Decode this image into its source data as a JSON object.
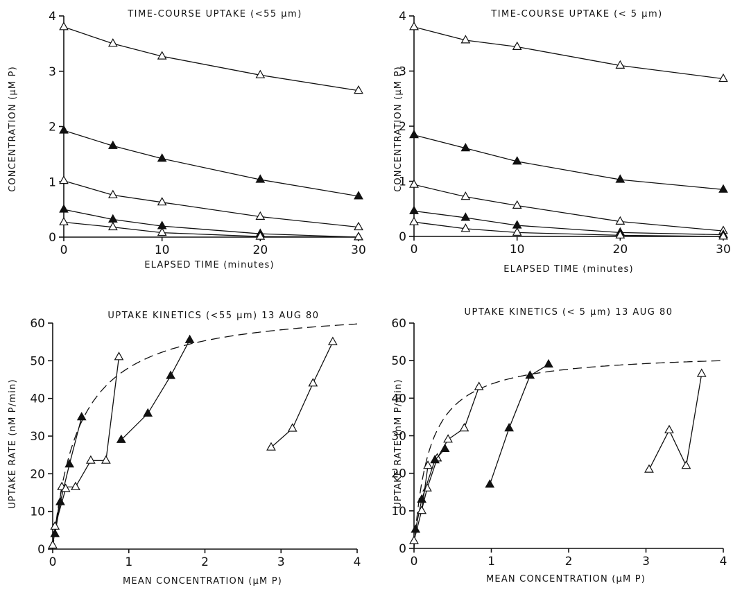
{
  "chart_data": [
    {
      "type": "line",
      "title": "TIME-COURSE UPTAKE (<55 µm)",
      "xlabel": "ELAPSED TIME (minutes)",
      "ylabel": "CONCENTRATION (µM P)",
      "xlim": [
        0,
        30
      ],
      "ylim": [
        0,
        4
      ],
      "xticks": [
        0,
        10,
        20,
        30
      ],
      "yticks": [
        0,
        1,
        2,
        3,
        4
      ],
      "grid": false,
      "series": [
        {
          "marker": "open-triangle",
          "x": [
            0,
            5,
            10,
            20,
            30
          ],
          "y": [
            3.8,
            3.5,
            3.27,
            2.93,
            2.65
          ]
        },
        {
          "marker": "filled-triangle",
          "x": [
            0,
            5,
            10,
            20,
            30
          ],
          "y": [
            1.93,
            1.65,
            1.42,
            1.04,
            0.74
          ]
        },
        {
          "marker": "open-triangle",
          "x": [
            0,
            5,
            10,
            20,
            30
          ],
          "y": [
            1.02,
            0.76,
            0.63,
            0.37,
            0.18
          ]
        },
        {
          "marker": "filled-triangle",
          "x": [
            0,
            5,
            10,
            20,
            30
          ],
          "y": [
            0.5,
            0.32,
            0.2,
            0.06,
            0.0
          ]
        },
        {
          "marker": "open-triangle",
          "x": [
            0,
            5,
            10,
            20,
            30
          ],
          "y": [
            0.27,
            0.18,
            0.08,
            0.01,
            0.0
          ]
        }
      ]
    },
    {
      "type": "line",
      "title": "TIME-COURSE UPTAKE (< 5 µm)",
      "xlabel": "ELAPSED TIME (minutes)",
      "ylabel": "CONCENTRATION (µM P)",
      "xlim": [
        0,
        30
      ],
      "ylim": [
        0,
        4
      ],
      "xticks": [
        0,
        10,
        20,
        30
      ],
      "yticks": [
        0,
        1,
        2,
        3,
        4
      ],
      "grid": false,
      "series": [
        {
          "marker": "open-triangle",
          "x": [
            0,
            5,
            10,
            20,
            30
          ],
          "y": [
            3.8,
            3.56,
            3.44,
            3.1,
            2.86
          ]
        },
        {
          "marker": "filled-triangle",
          "x": [
            0,
            5,
            10,
            20,
            30
          ],
          "y": [
            1.84,
            1.6,
            1.36,
            1.03,
            0.85
          ]
        },
        {
          "marker": "open-triangle",
          "x": [
            0,
            5,
            10,
            20,
            30
          ],
          "y": [
            0.94,
            0.72,
            0.56,
            0.27,
            0.1
          ]
        },
        {
          "marker": "filled-triangle",
          "x": [
            0,
            5,
            10,
            20,
            30
          ],
          "y": [
            0.46,
            0.34,
            0.2,
            0.07,
            0.03
          ]
        },
        {
          "marker": "open-triangle",
          "x": [
            0,
            5,
            10,
            20,
            30
          ],
          "y": [
            0.26,
            0.14,
            0.07,
            0.02,
            0.0
          ]
        }
      ]
    },
    {
      "type": "line",
      "title": "UPTAKE KINETICS (<55 µm) 13 AUG 80",
      "xlabel": "MEAN CONCENTRATION (µM P)",
      "ylabel": "UPTAKE RATE (nM P/min)",
      "xlim": [
        0,
        4
      ],
      "ylim": [
        0,
        60
      ],
      "xticks": [
        0,
        1,
        2,
        3,
        4
      ],
      "yticks": [
        0,
        10,
        20,
        30,
        40,
        50,
        60
      ],
      "grid": false,
      "fitted_curve": {
        "style": "dashed",
        "vmax": 65,
        "km": 0.35
      },
      "series": [
        {
          "marker": "open-triangle",
          "x": [
            0.0,
            0.12,
            0.3,
            0.5,
            0.7,
            0.87
          ],
          "y": [
            1,
            16.5,
            16.5,
            23.5,
            23.5,
            51
          ]
        },
        {
          "marker": "filled-triangle",
          "x": [
            0.03,
            0.1,
            0.22,
            0.38
          ],
          "y": [
            4,
            12.5,
            22.5,
            35
          ]
        },
        {
          "marker": "open-triangle",
          "x": [
            0.03,
            0.17
          ],
          "y": [
            6,
            16
          ]
        },
        {
          "marker": "filled-triangle",
          "x": [
            0.9,
            1.25,
            1.55,
            1.8
          ],
          "y": [
            29,
            36,
            46,
            55.5
          ]
        },
        {
          "marker": "open-triangle",
          "x": [
            2.87,
            3.15,
            3.42,
            3.68
          ],
          "y": [
            27,
            32,
            44,
            55
          ]
        }
      ]
    },
    {
      "type": "line",
      "title": "UPTAKE KINETICS (< 5 µm) 13 AUG 80",
      "xlabel": "MEAN CONCENTRATION (µM P)",
      "ylabel": "UPTAKE RATE (nM P/min)",
      "xlim": [
        0,
        4
      ],
      "ylim": [
        0,
        60
      ],
      "xticks": [
        0,
        1,
        2,
        3,
        4
      ],
      "yticks": [
        0,
        10,
        20,
        30,
        40,
        50,
        60
      ],
      "grid": false,
      "fitted_curve": {
        "style": "dashed",
        "vmax": 52.5,
        "km": 0.2
      },
      "series": [
        {
          "marker": "open-triangle",
          "x": [
            0.0,
            0.17,
            0.3,
            0.44,
            0.65,
            0.84
          ],
          "y": [
            2,
            16,
            24,
            29,
            32,
            43
          ]
        },
        {
          "marker": "filled-triangle",
          "x": [
            0.02,
            0.1,
            0.27,
            0.4
          ],
          "y": [
            5,
            13,
            23.5,
            26.5
          ]
        },
        {
          "marker": "open-triangle",
          "x": [
            0.1,
            0.18
          ],
          "y": [
            10,
            22
          ]
        },
        {
          "marker": "filled-triangle",
          "x": [
            0.98,
            1.23,
            1.5,
            1.74
          ],
          "y": [
            17,
            32,
            46,
            49
          ]
        },
        {
          "marker": "open-triangle",
          "x": [
            3.04,
            3.3,
            3.52,
            3.72
          ],
          "y": [
            21,
            31.5,
            22,
            46.5
          ]
        }
      ]
    }
  ]
}
